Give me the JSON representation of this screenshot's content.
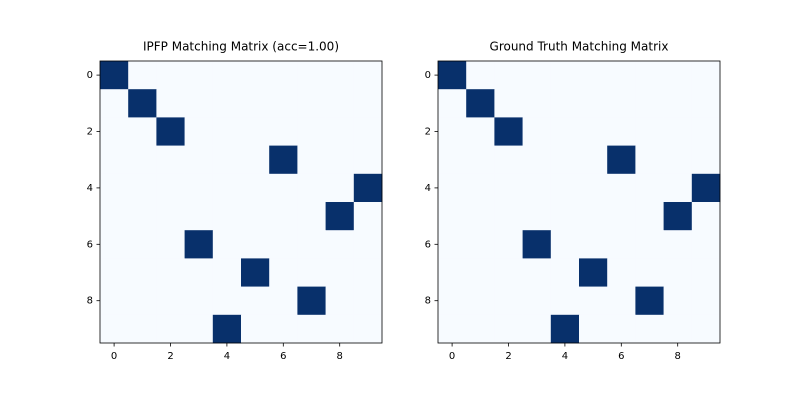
{
  "chart_data": [
    {
      "type": "heatmap",
      "title": "IPFP Matching Matrix (acc=1.00)",
      "matrix": [
        [
          1,
          0,
          0,
          0,
          0,
          0,
          0,
          0,
          0,
          0
        ],
        [
          0,
          1,
          0,
          0,
          0,
          0,
          0,
          0,
          0,
          0
        ],
        [
          0,
          0,
          1,
          0,
          0,
          0,
          0,
          0,
          0,
          0
        ],
        [
          0,
          0,
          0,
          0,
          0,
          0,
          1,
          0,
          0,
          0
        ],
        [
          0,
          0,
          0,
          0,
          0,
          0,
          0,
          0,
          0,
          1
        ],
        [
          0,
          0,
          0,
          0,
          0,
          0,
          0,
          0,
          1,
          0
        ],
        [
          0,
          0,
          0,
          1,
          0,
          0,
          0,
          0,
          0,
          0
        ],
        [
          0,
          0,
          0,
          0,
          0,
          1,
          0,
          0,
          0,
          0
        ],
        [
          0,
          0,
          0,
          0,
          0,
          0,
          0,
          1,
          0,
          0
        ],
        [
          0,
          0,
          0,
          0,
          1,
          0,
          0,
          0,
          0,
          0
        ]
      ],
      "colors": [
        "#f7fbff",
        "#08306b"
      ],
      "xlim": [
        -0.5,
        9.5
      ],
      "ylim": [
        9.5,
        -0.5
      ],
      "xticks": [
        0,
        2,
        4,
        6,
        8
      ],
      "yticks": [
        0,
        2,
        4,
        6,
        8
      ]
    },
    {
      "type": "heatmap",
      "title": "Ground Truth Matching Matrix",
      "matrix": [
        [
          1,
          0,
          0,
          0,
          0,
          0,
          0,
          0,
          0,
          0
        ],
        [
          0,
          1,
          0,
          0,
          0,
          0,
          0,
          0,
          0,
          0
        ],
        [
          0,
          0,
          1,
          0,
          0,
          0,
          0,
          0,
          0,
          0
        ],
        [
          0,
          0,
          0,
          0,
          0,
          0,
          1,
          0,
          0,
          0
        ],
        [
          0,
          0,
          0,
          0,
          0,
          0,
          0,
          0,
          0,
          1
        ],
        [
          0,
          0,
          0,
          0,
          0,
          0,
          0,
          0,
          1,
          0
        ],
        [
          0,
          0,
          0,
          1,
          0,
          0,
          0,
          0,
          0,
          0
        ],
        [
          0,
          0,
          0,
          0,
          0,
          1,
          0,
          0,
          0,
          0
        ],
        [
          0,
          0,
          0,
          0,
          0,
          0,
          0,
          1,
          0,
          0
        ],
        [
          0,
          0,
          0,
          0,
          1,
          0,
          0,
          0,
          0,
          0
        ]
      ],
      "colors": [
        "#f7fbff",
        "#08306b"
      ],
      "xlim": [
        -0.5,
        9.5
      ],
      "ylim": [
        9.5,
        -0.5
      ],
      "xticks": [
        0,
        2,
        4,
        6,
        8
      ],
      "yticks": [
        0,
        2,
        4,
        6,
        8
      ]
    }
  ]
}
